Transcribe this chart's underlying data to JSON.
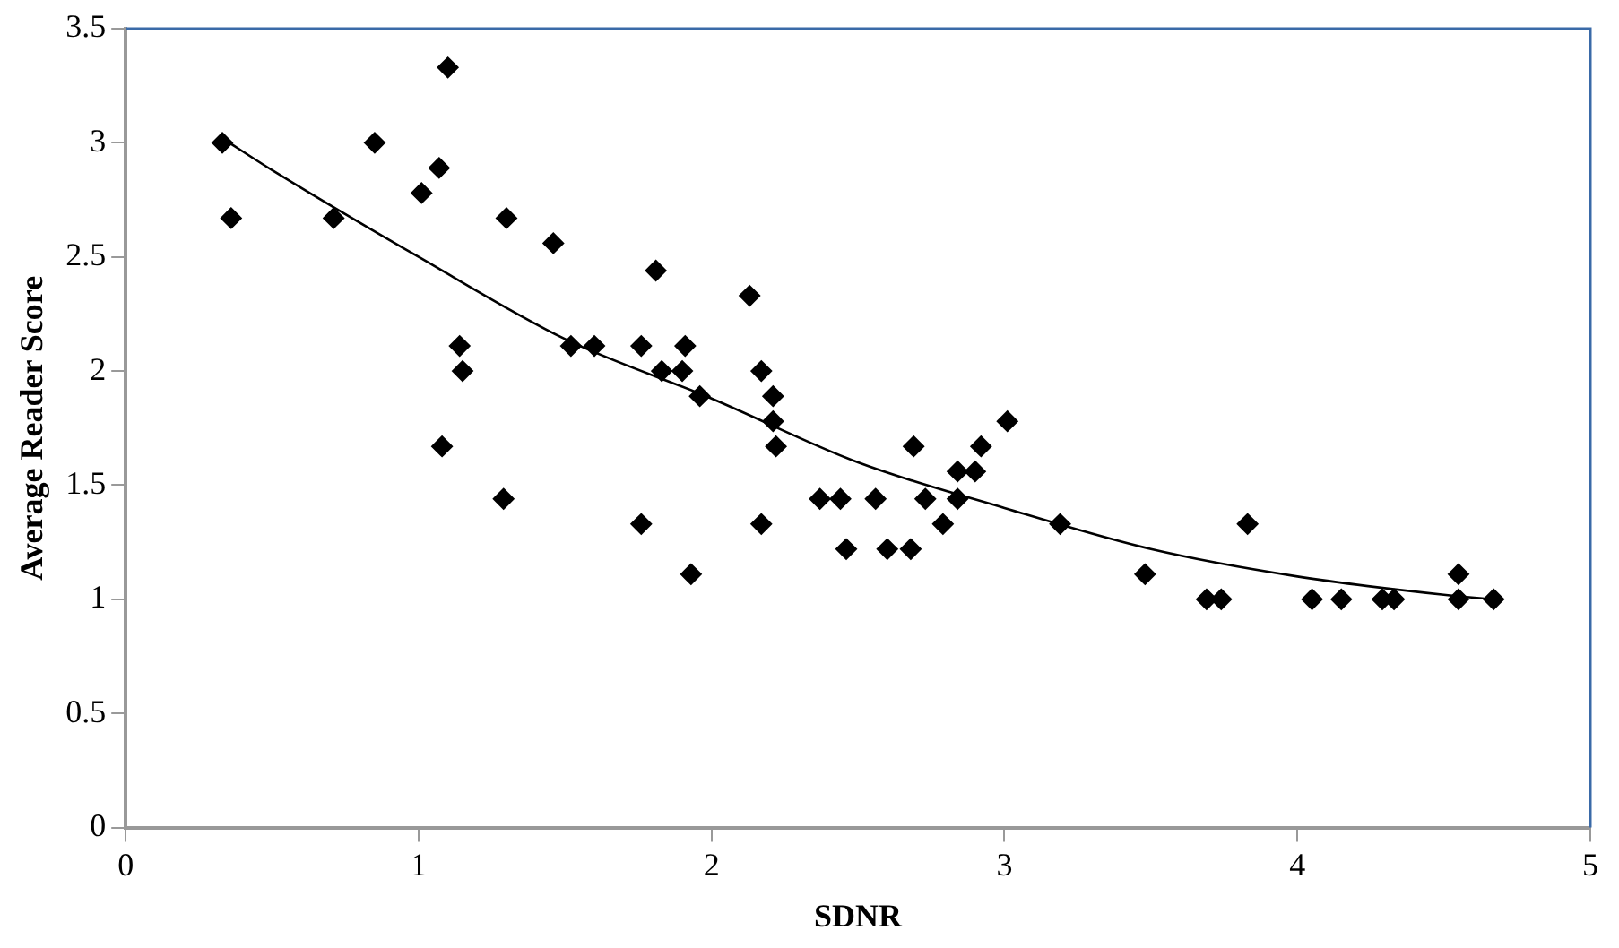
{
  "chart_data": {
    "type": "scatter",
    "xlabel": "SDNR",
    "ylabel": "Average Reader Score",
    "marker": "diamond",
    "grid": false,
    "legend": false,
    "xlim": [
      0,
      5
    ],
    "xticks": [
      0,
      1,
      2,
      3,
      4,
      5
    ],
    "ylim": [
      0,
      3.5
    ],
    "yticks": [
      0,
      0.5,
      1,
      1.5,
      2,
      2.5,
      3,
      3.5
    ],
    "series": [
      {
        "color": "#000000",
        "x": [
          0.33,
          0.36,
          0.71,
          0.85,
          1.01,
          1.07,
          1.1,
          1.14,
          1.15,
          1.08,
          1.29,
          1.3,
          1.46,
          1.52,
          1.6,
          1.76,
          1.76,
          1.81,
          1.83,
          1.91,
          1.9,
          1.93,
          1.96,
          2.13,
          2.17,
          2.17,
          2.21,
          2.21,
          2.22,
          2.37,
          2.44,
          2.46,
          2.56,
          2.6,
          2.68,
          2.69,
          2.73,
          2.79,
          2.84,
          2.84,
          2.9,
          2.92,
          3.01,
          3.19,
          3.48,
          3.69,
          3.74,
          3.83,
          4.05,
          4.15,
          4.29,
          4.33,
          4.55,
          4.55,
          4.67
        ],
        "values": [
          3.0,
          2.67,
          2.67,
          3.0,
          2.78,
          2.89,
          3.33,
          2.11,
          2.0,
          1.67,
          1.44,
          2.67,
          2.56,
          2.11,
          2.11,
          1.33,
          2.11,
          2.44,
          2.0,
          2.11,
          2.0,
          1.11,
          1.89,
          2.33,
          2.0,
          1.33,
          1.89,
          1.78,
          1.67,
          1.44,
          1.44,
          1.22,
          1.44,
          1.22,
          1.22,
          1.67,
          1.44,
          1.33,
          1.44,
          1.56,
          1.56,
          1.67,
          1.78,
          1.33,
          1.11,
          1.0,
          1.0,
          1.33,
          1.0,
          1.0,
          1.0,
          1.0,
          1.0,
          1.11,
          1.0
        ]
      },
      {
        "type": "line",
        "color": "#000000",
        "marker": "none",
        "x": [
          0.33,
          0.5,
          1,
          1.5,
          2,
          2.5,
          3,
          3.5,
          4,
          4.5,
          4.67
        ],
        "values": [
          3.02,
          2.88,
          2.5,
          2.14,
          1.88,
          1.6,
          1.4,
          1.22,
          1.1,
          1.02,
          1.0
        ]
      }
    ]
  }
}
